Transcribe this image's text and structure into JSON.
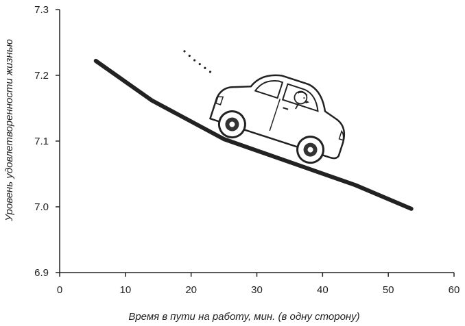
{
  "chart_data": {
    "type": "line",
    "title": "",
    "xlabel": "Время в пути на работу, мин. (в одну сторону)",
    "ylabel": "Уровень удовлетворенности жизнью",
    "xlim": [
      0,
      60
    ],
    "ylim": [
      6.9,
      7.3
    ],
    "x_ticks": [
      "0",
      "10",
      "20",
      "30",
      "40",
      "50",
      "60"
    ],
    "y_ticks": [
      "6.9",
      "7.0",
      "7.1",
      "7.2",
      "7.3"
    ],
    "grid": false,
    "legend": "none",
    "series": [
      {
        "x": [
          5.5,
          14,
          25,
          35,
          45,
          53.5
        ],
        "y": [
          7.222,
          7.162,
          7.103,
          7.068,
          7.033,
          6.997
        ],
        "color": "#222222"
      }
    ],
    "illustration": "car-driving-downhill"
  }
}
